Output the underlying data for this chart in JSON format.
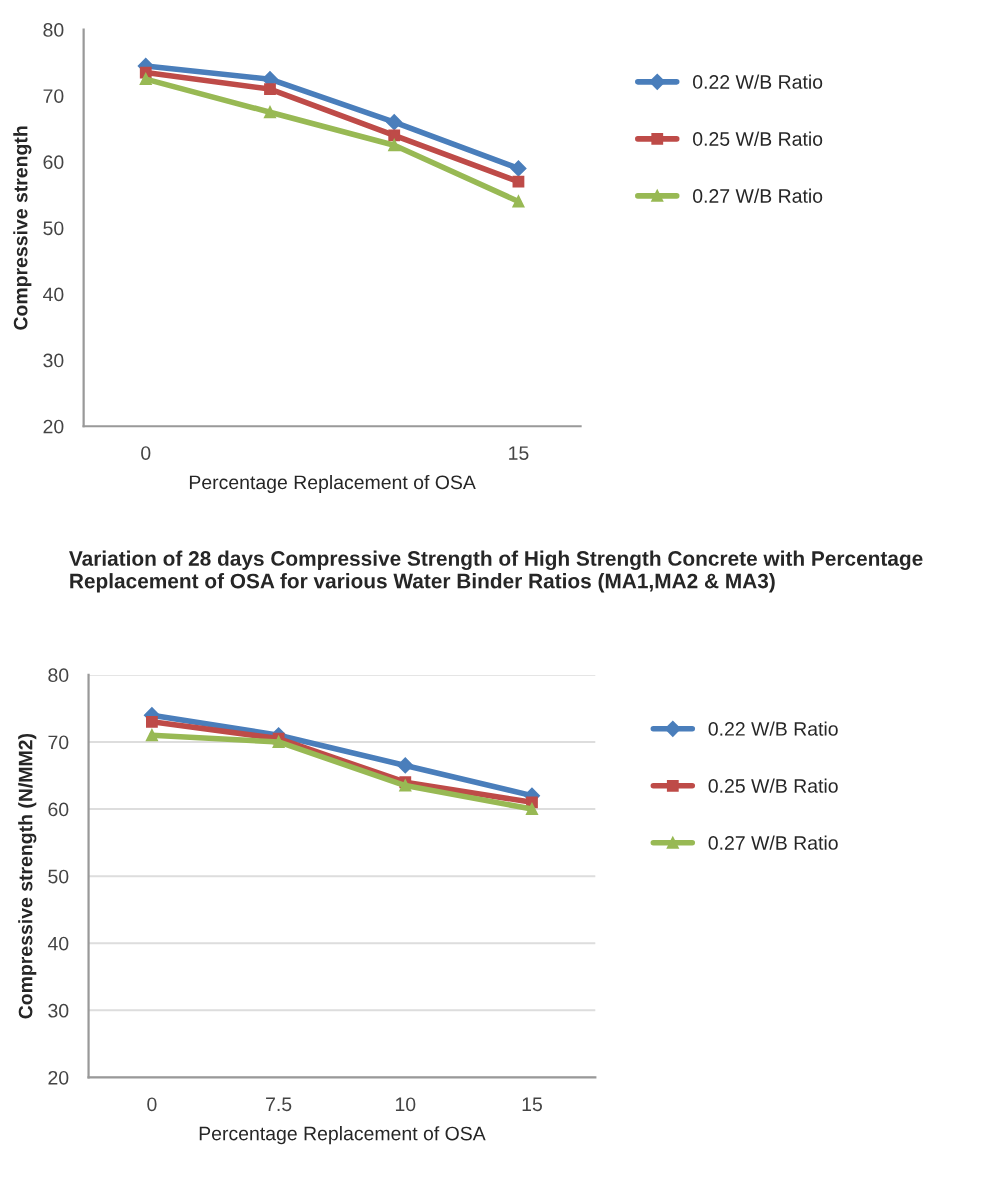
{
  "chart_data": [
    {
      "type": "line",
      "categories": [
        "0",
        null,
        null,
        "15"
      ],
      "xlabel": "Percentage Replacement of OSA",
      "ylabel": "Compressive strength",
      "ylim": [
        20,
        80
      ],
      "yticks": [
        20,
        30,
        40,
        50,
        60,
        70,
        80
      ],
      "grid": false,
      "legend": "right",
      "series": [
        {
          "name": "0.22 W/B Ratio",
          "color": "#4a7ebb",
          "marker": "diamond",
          "values": [
            74.5,
            72.5,
            66,
            59
          ]
        },
        {
          "name": "0.25 W/B Ratio",
          "color": "#be4b48",
          "marker": "square",
          "values": [
            73.5,
            71,
            64,
            57
          ]
        },
        {
          "name": "0.27 W/B Ratio",
          "color": "#98b954",
          "marker": "triangle",
          "values": [
            72.5,
            67.5,
            62.5,
            54
          ]
        }
      ]
    },
    {
      "type": "line",
      "title": "Variation of 28 days Compressive Strength of High Strength Concrete with Percentage Replacement of OSA for various Water Binder Ratios (MA1,MA2 & MA3)",
      "categories": [
        "0",
        "7.5",
        "10",
        "15"
      ],
      "xlabel": "Percentage Replacement of OSA",
      "ylabel": "Compressive strength (N/MM2)",
      "ylim": [
        20,
        80
      ],
      "yticks": [
        20,
        30,
        40,
        50,
        60,
        70,
        80
      ],
      "grid": "y",
      "legend": "right",
      "series": [
        {
          "name": "0.22 W/B Ratio",
          "color": "#4a7ebb",
          "marker": "diamond",
          "values": [
            74,
            71,
            66.5,
            62
          ]
        },
        {
          "name": "0.25 W/B Ratio",
          "color": "#be4b48",
          "marker": "square",
          "values": [
            73,
            70.5,
            64,
            61
          ]
        },
        {
          "name": "0.27 W/B Ratio",
          "color": "#98b954",
          "marker": "triangle",
          "values": [
            71,
            70,
            63.5,
            60
          ]
        }
      ]
    }
  ]
}
